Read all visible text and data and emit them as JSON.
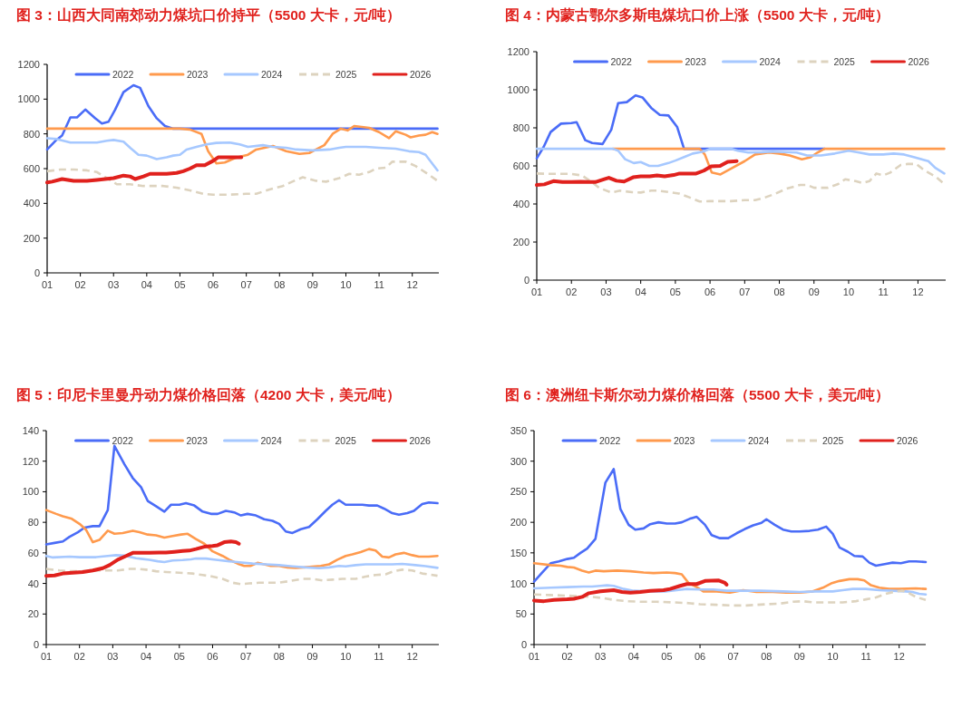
{
  "chart_data": [
    {
      "type": "line",
      "title": "图 3：山西大同南郊动力煤坑口价持平（5500 大卡，元/吨）",
      "xlim": [
        1,
        12.8
      ],
      "xticks": [
        {
          "value": 1,
          "label": "01"
        },
        {
          "value": 2,
          "label": "02"
        },
        {
          "value": 3,
          "label": "03"
        },
        {
          "value": 4,
          "label": "04"
        },
        {
          "value": 5,
          "label": "05"
        },
        {
          "value": 6,
          "label": "06"
        },
        {
          "value": 7,
          "label": "07"
        },
        {
          "value": 8,
          "label": "08"
        },
        {
          "value": 9,
          "label": "09"
        },
        {
          "value": 10,
          "label": "10"
        },
        {
          "value": 11,
          "label": "11"
        },
        {
          "value": 12,
          "label": "12"
        }
      ],
      "ylim": [
        0,
        1200
      ],
      "yticks": [
        0,
        200,
        400,
        600,
        800,
        1000,
        1200
      ],
      "legend": "top",
      "grid": false,
      "marker": "none",
      "series": [
        {
          "name": "2022",
          "color": "#4a6cf7",
          "line_style": "solid",
          "x": [
            1,
            1.25,
            1.45,
            1.7,
            1.9,
            2.15,
            2.45,
            2.65,
            2.85,
            3.05,
            3.3,
            3.6,
            3.8,
            4.05,
            4.3,
            4.55,
            4.8,
            12.76
          ],
          "values": [
            710,
            760,
            790,
            895,
            895,
            940,
            890,
            860,
            870,
            940,
            1040,
            1080,
            1065,
            960,
            890,
            845,
            830,
            830
          ]
        },
        {
          "name": "2023",
          "color": "#ff9a4d",
          "line_style": "solid",
          "x": [
            1,
            5.0,
            5.3,
            5.65,
            5.85,
            6.1,
            6.35,
            6.65,
            6.85,
            7.05,
            7.3,
            7.8,
            8.2,
            8.6,
            8.9,
            9.1,
            9.35,
            9.6,
            9.85,
            10.05,
            10.25,
            10.7,
            11.0,
            11.3,
            11.5,
            11.8,
            11.95,
            12.2,
            12.4,
            12.6,
            12.76
          ],
          "values": [
            830,
            830,
            825,
            800,
            700,
            630,
            635,
            660,
            670,
            680,
            710,
            730,
            700,
            685,
            690,
            710,
            735,
            800,
            830,
            820,
            845,
            835,
            810,
            775,
            815,
            795,
            780,
            790,
            795,
            810,
            800
          ]
        },
        {
          "name": "2024",
          "color": "#a6c8ff",
          "line_style": "solid",
          "x": [
            1,
            1.3,
            1.7,
            2,
            2.5,
            2.8,
            3,
            3.3,
            3.5,
            3.75,
            4,
            4.3,
            4.6,
            4.8,
            5,
            5.2,
            5.5,
            5.8,
            6.1,
            6.5,
            6.8,
            7.05,
            7.5,
            7.8,
            8.2,
            8.5,
            9,
            9.5,
            9.8,
            10,
            10.6,
            11,
            11.5,
            11.9,
            12.2,
            12.4,
            12.76
          ],
          "values": [
            775,
            770,
            750,
            750,
            750,
            760,
            765,
            755,
            720,
            680,
            675,
            655,
            665,
            675,
            680,
            710,
            725,
            740,
            748,
            750,
            740,
            725,
            735,
            725,
            720,
            710,
            705,
            710,
            720,
            725,
            725,
            720,
            715,
            700,
            695,
            680,
            590
          ]
        },
        {
          "name": "2025",
          "color": "#ddd3bf",
          "line_style": "dashed",
          "x": [
            1,
            1.4,
            1.8,
            2.2,
            2.5,
            2.8,
            3.1,
            3.5,
            3.9,
            4.5,
            4.9,
            5.3,
            5.7,
            6,
            6.5,
            7,
            7.3,
            7.7,
            8.1,
            8.5,
            8.7,
            9.1,
            9.4,
            9.8,
            10.1,
            10.4,
            10.7,
            10.9,
            11.2,
            11.4,
            11.8,
            12.1,
            12.5,
            12.76
          ],
          "values": [
            585,
            595,
            595,
            590,
            580,
            545,
            510,
            510,
            500,
            500,
            490,
            475,
            455,
            450,
            450,
            455,
            455,
            480,
            500,
            535,
            550,
            530,
            525,
            545,
            570,
            565,
            580,
            600,
            605,
            640,
            640,
            615,
            565,
            530
          ]
        },
        {
          "name": "2026",
          "color": "#e0211d",
          "line_style": "solid",
          "x": [
            1,
            1.15,
            1.45,
            1.8,
            2.2,
            2.5,
            2.75,
            3,
            3.3,
            3.5,
            3.65,
            3.9,
            4.1,
            4.6,
            4.9,
            5.1,
            5.3,
            5.5,
            5.75,
            6,
            6.15,
            6.5,
            6.85
          ],
          "values": [
            520,
            525,
            540,
            530,
            530,
            535,
            540,
            545,
            560,
            555,
            540,
            555,
            570,
            570,
            575,
            585,
            600,
            620,
            620,
            645,
            665,
            665,
            665
          ]
        }
      ]
    },
    {
      "type": "line",
      "title": "图 4：内蒙古鄂尔多斯电煤坑口价上涨（5500 大卡，元/吨）",
      "xlim": [
        1,
        12.8
      ],
      "xticks": [
        {
          "value": 1,
          "label": "01"
        },
        {
          "value": 2,
          "label": "02"
        },
        {
          "value": 3,
          "label": "03"
        },
        {
          "value": 4,
          "label": "04"
        },
        {
          "value": 5,
          "label": "05"
        },
        {
          "value": 6,
          "label": "06"
        },
        {
          "value": 7,
          "label": "07"
        },
        {
          "value": 8,
          "label": "08"
        },
        {
          "value": 9,
          "label": "09"
        },
        {
          "value": 10,
          "label": "10"
        },
        {
          "value": 11,
          "label": "11"
        },
        {
          "value": 12,
          "label": "12"
        }
      ],
      "ylim": [
        0,
        1200
      ],
      "yticks": [
        0,
        200,
        400,
        600,
        800,
        1000,
        1200
      ],
      "legend": "top",
      "grid": false,
      "marker": "none",
      "series": [
        {
          "name": "2022",
          "color": "#4a6cf7",
          "line_style": "solid",
          "x": [
            1,
            1.2,
            1.4,
            1.7,
            2,
            2.15,
            2.4,
            2.6,
            2.9,
            3.15,
            3.35,
            3.6,
            3.85,
            4.05,
            4.3,
            4.55,
            4.8,
            5.05,
            5.25,
            9.3
          ],
          "values": [
            640,
            700,
            778,
            822,
            825,
            830,
            735,
            720,
            715,
            790,
            930,
            935,
            970,
            960,
            905,
            868,
            865,
            805,
            690,
            690
          ]
        },
        {
          "name": "2023",
          "color": "#ff9a4d",
          "line_style": "solid",
          "x": [
            3.2,
            5.7,
            5.85,
            6.05,
            6.3,
            6.6,
            7,
            7.3,
            7.7,
            8,
            8.3,
            8.65,
            8.9,
            9.1,
            9.3,
            12.76
          ],
          "values": [
            690,
            690,
            660,
            565,
            555,
            585,
            625,
            660,
            670,
            665,
            655,
            635,
            645,
            670,
            690,
            690
          ]
        },
        {
          "name": "2024",
          "color": "#a6c8ff",
          "line_style": "solid",
          "x": [
            1,
            3.2,
            3.35,
            3.55,
            3.8,
            4,
            4.25,
            4.5,
            4.8,
            5,
            5.3,
            5.5,
            5.8,
            6,
            6.6,
            6.8,
            7.1,
            7.5,
            7.8,
            8.5,
            8.8,
            9.2,
            9.6,
            10,
            10.3,
            10.6,
            11,
            11.3,
            11.6,
            11.9,
            12.3,
            12.5,
            12.76
          ],
          "values": [
            690,
            690,
            680,
            635,
            615,
            620,
            600,
            600,
            615,
            628,
            650,
            665,
            675,
            690,
            690,
            680,
            670,
            672,
            675,
            670,
            655,
            655,
            665,
            680,
            670,
            660,
            660,
            665,
            660,
            645,
            625,
            590,
            560
          ]
        },
        {
          "name": "2025",
          "color": "#ddd3bf",
          "line_style": "dashed",
          "x": [
            1,
            1.5,
            2,
            2.3,
            2.55,
            2.8,
            3.15,
            3.4,
            3.75,
            4,
            4.3,
            4.5,
            4.9,
            5.1,
            5.4,
            5.7,
            6,
            6.6,
            7,
            7.3,
            7.6,
            7.9,
            8.2,
            8.6,
            8.8,
            9,
            9.4,
            9.7,
            9.9,
            10.2,
            10.4,
            10.6,
            10.8,
            11,
            11.2,
            11.5,
            11.7,
            11.95,
            12.2,
            12.5,
            12.76
          ],
          "values": [
            560,
            558,
            558,
            550,
            520,
            485,
            460,
            470,
            462,
            460,
            470,
            470,
            460,
            455,
            435,
            413,
            415,
            415,
            420,
            420,
            435,
            455,
            480,
            500,
            500,
            485,
            485,
            505,
            530,
            520,
            510,
            520,
            560,
            550,
            565,
            605,
            610,
            610,
            575,
            545,
            505
          ]
        },
        {
          "name": "2026",
          "color": "#e0211d",
          "line_style": "solid",
          "x": [
            1,
            1.22,
            1.48,
            1.74,
            2,
            2.26,
            2.52,
            2.69,
            2.95,
            3.08,
            3.3,
            3.52,
            3.78,
            4,
            4.26,
            4.47,
            4.69,
            4.95,
            5.12,
            5.6,
            5.82,
            6.03,
            6.29,
            6.51,
            6.77
          ],
          "values": [
            500,
            503,
            520,
            515,
            515,
            517,
            515,
            515,
            530,
            538,
            522,
            518,
            540,
            545,
            545,
            550,
            545,
            552,
            560,
            560,
            575,
            598,
            600,
            622,
            625
          ]
        }
      ]
    },
    {
      "type": "line",
      "title": "图 5：印尼卡里曼丹动力煤价格回落（4200 大卡，美元/吨）",
      "xlim": [
        1,
        12.8
      ],
      "xticks": [
        {
          "value": 1,
          "label": "01"
        },
        {
          "value": 2,
          "label": "02"
        },
        {
          "value": 3,
          "label": "03"
        },
        {
          "value": 4,
          "label": "04"
        },
        {
          "value": 5,
          "label": "05"
        },
        {
          "value": 6,
          "label": "06"
        },
        {
          "value": 7,
          "label": "07"
        },
        {
          "value": 8,
          "label": "08"
        },
        {
          "value": 9,
          "label": "09"
        },
        {
          "value": 10,
          "label": "10"
        },
        {
          "value": 11,
          "label": "11"
        },
        {
          "value": 12,
          "label": "12"
        }
      ],
      "ylim": [
        0,
        140
      ],
      "yticks": [
        0,
        20,
        40,
        60,
        80,
        100,
        120,
        140
      ],
      "legend": "top",
      "grid": false,
      "marker": "none",
      "series": [
        {
          "name": "2022",
          "color": "#4a6cf7",
          "line_style": "solid",
          "x": [
            1,
            1.25,
            1.5,
            1.7,
            1.95,
            2.15,
            2.4,
            2.6,
            2.85,
            3.05,
            3.35,
            3.6,
            3.85,
            4.05,
            4.3,
            4.55,
            4.75,
            5,
            5.2,
            5.45,
            5.7,
            5.95,
            6.15,
            6.4,
            6.65,
            6.85,
            7.05,
            7.3,
            7.55,
            7.8,
            8,
            8.2,
            8.4,
            8.65,
            8.9,
            9.15,
            9.4,
            9.6,
            9.8,
            10,
            10.5,
            10.7,
            10.95,
            11.15,
            11.4,
            11.6,
            11.85,
            12.05,
            12.3,
            12.5,
            12.76
          ],
          "values": [
            65.5,
            66.5,
            67.5,
            70.5,
            73.5,
            76.5,
            77.5,
            77.5,
            88,
            130,
            118,
            109,
            103,
            94,
            90.5,
            87,
            91.5,
            91.5,
            92.5,
            91,
            87,
            85.5,
            85.5,
            87.5,
            86.5,
            84.5,
            85.5,
            84.5,
            82,
            81,
            79,
            74,
            73,
            75.5,
            77,
            82,
            87.5,
            91.5,
            94.5,
            91.5,
            91.5,
            91,
            91,
            89,
            86,
            85,
            86,
            87.5,
            92,
            93,
            92.5
          ]
        },
        {
          "name": "2023",
          "color": "#ff9a4d",
          "line_style": "solid",
          "x": [
            1,
            1.3,
            1.5,
            1.75,
            2,
            2.2,
            2.4,
            2.6,
            2.85,
            3.05,
            3.3,
            3.6,
            3.8,
            4.05,
            4.3,
            4.55,
            4.8,
            5.05,
            5.25,
            5.5,
            5.75,
            6,
            6.3,
            6.5,
            6.75,
            6.95,
            7.15,
            7.35,
            7.55,
            7.75,
            8,
            8.25,
            8.5,
            8.75,
            9,
            9.25,
            9.5,
            9.75,
            10,
            10.2,
            10.45,
            10.7,
            10.9,
            11.1,
            11.3,
            11.5,
            11.75,
            12,
            12.2,
            12.5,
            12.76
          ],
          "values": [
            88,
            85.5,
            84,
            82.5,
            79,
            75,
            67,
            68.5,
            74.5,
            72.5,
            73,
            74.5,
            73.5,
            72,
            71.5,
            70,
            71,
            72,
            72.5,
            69,
            66,
            61,
            58,
            55.5,
            53,
            51.5,
            51.5,
            53.5,
            52.5,
            51.5,
            51.5,
            50.5,
            50.2,
            50.5,
            51,
            51.5,
            52.5,
            55.5,
            58,
            59,
            60.5,
            62.5,
            61.5,
            57.5,
            57,
            59,
            60,
            58.5,
            57.5,
            57.5,
            58
          ]
        },
        {
          "name": "2024",
          "color": "#a6c8ff",
          "line_style": "solid",
          "x": [
            1,
            1.2,
            1.7,
            2,
            2.5,
            2.85,
            3.1,
            3.35,
            3.7,
            3.9,
            4.1,
            4.35,
            4.55,
            4.8,
            5.1,
            5.35,
            5.5,
            5.8,
            6.1,
            6.5,
            6.8,
            7.2,
            7.6,
            8,
            8.4,
            8.8,
            9.2,
            9.5,
            9.8,
            10,
            10.3,
            10.6,
            11,
            11.4,
            11.7,
            12.1,
            12.4,
            12.76
          ],
          "values": [
            58,
            57,
            57.5,
            57.2,
            57.2,
            58,
            58.5,
            58.2,
            56.5,
            56,
            55.5,
            54.5,
            54,
            55,
            55.3,
            55.8,
            56.3,
            56.3,
            55.5,
            54.5,
            53.8,
            53,
            52.5,
            52,
            51.2,
            50.5,
            50,
            50.5,
            51.5,
            51.2,
            52,
            52.5,
            52.5,
            52.5,
            52.8,
            52,
            51.3,
            50.2
          ]
        },
        {
          "name": "2025",
          "color": "#ddd3bf",
          "line_style": "dashed",
          "x": [
            1,
            1.4,
            1.7,
            2,
            2.3,
            2.6,
            2.9,
            3.15,
            3.5,
            3.75,
            4,
            4.3,
            4.6,
            5,
            5.4,
            5.7,
            6,
            6.3,
            6.6,
            6.85,
            7.1,
            7.4,
            8,
            8.3,
            8.7,
            9,
            9.3,
            9.6,
            9.9,
            10.3,
            10.6,
            10.9,
            11.2,
            11.45,
            11.7,
            12,
            12.3,
            12.5,
            12.76
          ],
          "values": [
            49.5,
            48.5,
            48,
            48,
            48.2,
            48.5,
            48.5,
            48.5,
            49.5,
            49.5,
            49,
            48,
            47.5,
            47,
            46.5,
            45.5,
            44.5,
            43,
            40.5,
            39.5,
            40,
            40.5,
            40.5,
            41.5,
            43,
            43,
            42,
            42.5,
            43,
            43,
            44.5,
            45.5,
            46,
            48,
            49,
            48.5,
            46.5,
            46,
            45
          ]
        },
        {
          "name": "2026",
          "color": "#e0211d",
          "line_style": "solid",
          "x": [
            1,
            1.25,
            1.5,
            1.8,
            2.1,
            2.4,
            2.7,
            2.9,
            3.15,
            3.4,
            3.6,
            4.1,
            4.4,
            4.6,
            4.85,
            5.1,
            5.3,
            5.5,
            5.75,
            6,
            6.15,
            6.35,
            6.55,
            6.7,
            6.79
          ],
          "values": [
            45,
            45.2,
            46.5,
            47,
            47.5,
            48.5,
            50,
            52,
            55.5,
            58,
            60,
            60,
            60.2,
            60.2,
            60.7,
            61.2,
            61.5,
            62.5,
            64,
            64.5,
            65,
            67,
            67.5,
            67,
            66
          ]
        }
      ]
    },
    {
      "type": "line",
      "title": "图 6：澳洲纽卡斯尔动力煤价格回落（5500 大卡，美元/吨）",
      "xlim": [
        1,
        12.8
      ],
      "xticks": [
        {
          "value": 1,
          "label": "01"
        },
        {
          "value": 2,
          "label": "02"
        },
        {
          "value": 3,
          "label": "03"
        },
        {
          "value": 4,
          "label": "04"
        },
        {
          "value": 5,
          "label": "05"
        },
        {
          "value": 6,
          "label": "06"
        },
        {
          "value": 7,
          "label": "07"
        },
        {
          "value": 8,
          "label": "08"
        },
        {
          "value": 9,
          "label": "09"
        },
        {
          "value": 10,
          "label": "10"
        },
        {
          "value": 11,
          "label": "11"
        },
        {
          "value": 12,
          "label": "12"
        }
      ],
      "ylim": [
        0,
        350
      ],
      "yticks": [
        0,
        50,
        100,
        150,
        200,
        250,
        300,
        350
      ],
      "legend": "top",
      "grid": false,
      "marker": "none",
      "series": [
        {
          "name": "2022",
          "color": "#4a6cf7",
          "line_style": "solid",
          "x": [
            1,
            1.25,
            1.5,
            1.75,
            2,
            2.2,
            2.4,
            2.6,
            2.85,
            3.15,
            3.4,
            3.6,
            3.85,
            4.05,
            4.3,
            4.5,
            4.75,
            5,
            5.25,
            5.45,
            5.7,
            5.9,
            6.15,
            6.35,
            6.6,
            6.85,
            7.1,
            7.35,
            7.6,
            7.85,
            8,
            8.25,
            8.5,
            8.75,
            9,
            9.3,
            9.55,
            9.8,
            10,
            10.2,
            10.45,
            10.65,
            10.9,
            11.1,
            11.3,
            11.6,
            11.8,
            12.05,
            12.3,
            12.5,
            12.8
          ],
          "values": [
            103,
            118,
            133,
            136,
            140,
            142,
            150,
            157,
            173,
            265,
            287,
            222,
            196,
            188,
            190,
            197,
            200,
            198,
            198,
            200,
            206,
            209,
            196,
            179,
            174,
            174,
            182,
            189,
            195,
            199,
            205,
            196,
            188,
            185,
            185,
            186,
            188,
            193,
            181,
            159,
            152,
            145,
            144,
            134,
            129,
            132,
            134,
            133,
            136,
            136,
            135
          ]
        },
        {
          "name": "2023",
          "color": "#ff9a4d",
          "line_style": "solid",
          "x": [
            1,
            1.5,
            1.8,
            2,
            2.2,
            2.45,
            2.65,
            2.85,
            3.1,
            3.5,
            3.9,
            4.3,
            4.6,
            5,
            5.25,
            5.45,
            5.65,
            5.9,
            6.1,
            6.5,
            6.9,
            7.3,
            7.7,
            8.2,
            8.6,
            9,
            9.4,
            9.7,
            9.95,
            10.2,
            10.5,
            10.75,
            10.95,
            11.15,
            11.4,
            11.7,
            12,
            12.5,
            12.8
          ],
          "values": [
            133,
            130,
            129,
            127,
            126,
            121,
            118,
            121,
            120,
            121,
            120,
            118,
            117,
            118,
            117,
            115,
            101,
            94,
            87,
            87,
            85,
            89,
            86,
            86,
            85,
            85,
            87,
            93,
            100,
            104,
            107,
            107,
            105,
            97,
            93,
            91,
            91,
            92,
            91
          ]
        },
        {
          "name": "2024",
          "color": "#a6c8ff",
          "line_style": "solid",
          "x": [
            1,
            1.5,
            2,
            2.5,
            2.75,
            3,
            3.2,
            3.4,
            3.7,
            4,
            4.5,
            4.95,
            5.3,
            5.6,
            6,
            6.4,
            6.8,
            7.2,
            7.8,
            8.5,
            9,
            9.5,
            10,
            10.3,
            10.6,
            11,
            11.4,
            11.8,
            12.2,
            12.4,
            12.6,
            12.8
          ],
          "values": [
            92,
            93,
            94,
            95,
            95,
            96,
            97,
            96,
            91,
            88,
            87,
            87,
            89,
            91,
            90,
            90,
            88,
            88,
            88,
            87,
            86,
            87,
            87,
            89,
            91,
            91,
            89,
            88,
            87,
            86,
            83,
            82
          ]
        },
        {
          "name": "2025",
          "color": "#ddd3bf",
          "line_style": "dashed",
          "x": [
            1,
            1.5,
            2,
            2.4,
            2.75,
            3.1,
            3.4,
            3.8,
            4.2,
            4.7,
            5.2,
            5.6,
            6,
            6.5,
            7,
            7.4,
            8,
            8.4,
            8.8,
            9.1,
            9.4,
            9.8,
            10.3,
            10.7,
            11,
            11.3,
            11.6,
            11.9,
            12.1,
            12.3,
            12.5,
            12.8
          ],
          "values": [
            82,
            81,
            80,
            79,
            78,
            76,
            73,
            71,
            70,
            70,
            69,
            68,
            66,
            65,
            64,
            64,
            66,
            67,
            70,
            71,
            69,
            69,
            69,
            71,
            74,
            77,
            83,
            87,
            88,
            84,
            78,
            73
          ]
        },
        {
          "name": "2026",
          "color": "#e0211d",
          "line_style": "solid",
          "x": [
            1,
            1.3,
            1.6,
            2,
            2.2,
            2.45,
            2.65,
            3,
            3.4,
            3.65,
            3.9,
            4.2,
            4.5,
            4.9,
            5.1,
            5.4,
            5.6,
            5.9,
            6.15,
            6.55,
            6.75,
            6.8
          ],
          "values": [
            72,
            71,
            73,
            74,
            75,
            78,
            84,
            87,
            89,
            86,
            85,
            86,
            88,
            89,
            91,
            96,
            99,
            99,
            104,
            105,
            101,
            98
          ]
        }
      ]
    }
  ]
}
